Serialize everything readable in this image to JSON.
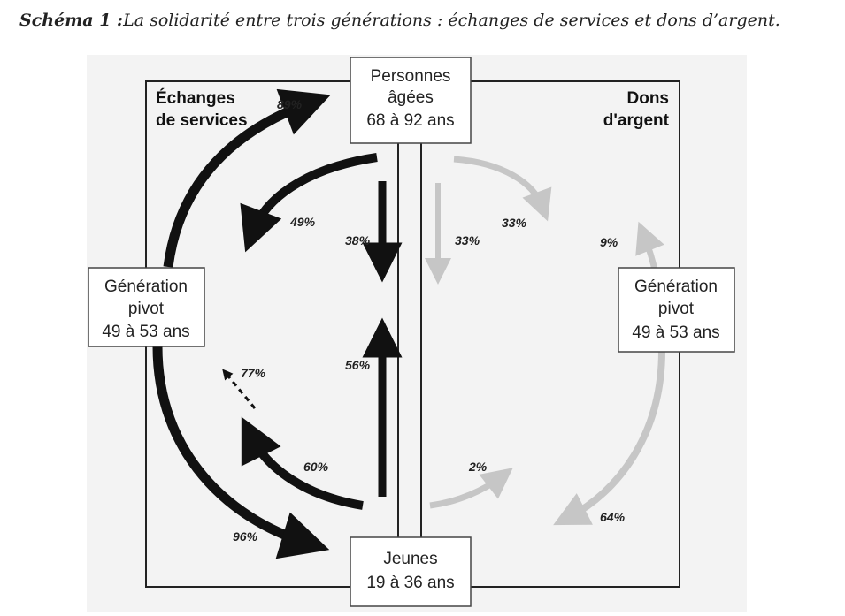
{
  "caption": {
    "lead": "Schéma 1 :",
    "rest": "La solidarité entre trois générations : échanges de services et dons d’argent."
  },
  "sections": {
    "services": [
      "Échanges",
      "de services"
    ],
    "money": [
      "Dons",
      "d'argent"
    ]
  },
  "boxes": {
    "elderly": [
      "Personnes",
      "âgées",
      "68 à 92 ans"
    ],
    "pivot_left": [
      "Génération",
      "pivot",
      "49 à 53 ans"
    ],
    "pivot_right": [
      "Génération",
      "pivot",
      "49 à 53 ans"
    ],
    "young": [
      "Jeunes",
      "19 à 36 ans"
    ]
  },
  "flows": {
    "services": {
      "pivot_to_elderly": "89%",
      "elderly_to_pivot": "49%",
      "elderly_to_young": "38%",
      "young_to_elderly": "56%",
      "young_to_pivot": "60%",
      "young_to_pivot_dashed": "77%",
      "pivot_to_young": "96%"
    },
    "money": {
      "elderly_to_pivot": "33%",
      "elderly_to_young": "33%",
      "pivot_to_elderly": "9%",
      "young_to_pivot": "2%",
      "pivot_to_young": "64%"
    }
  },
  "colors": {
    "services_arrow": "#111111",
    "money_arrow": "#c6c6c6",
    "figure_bg": "#f3f3f3"
  }
}
